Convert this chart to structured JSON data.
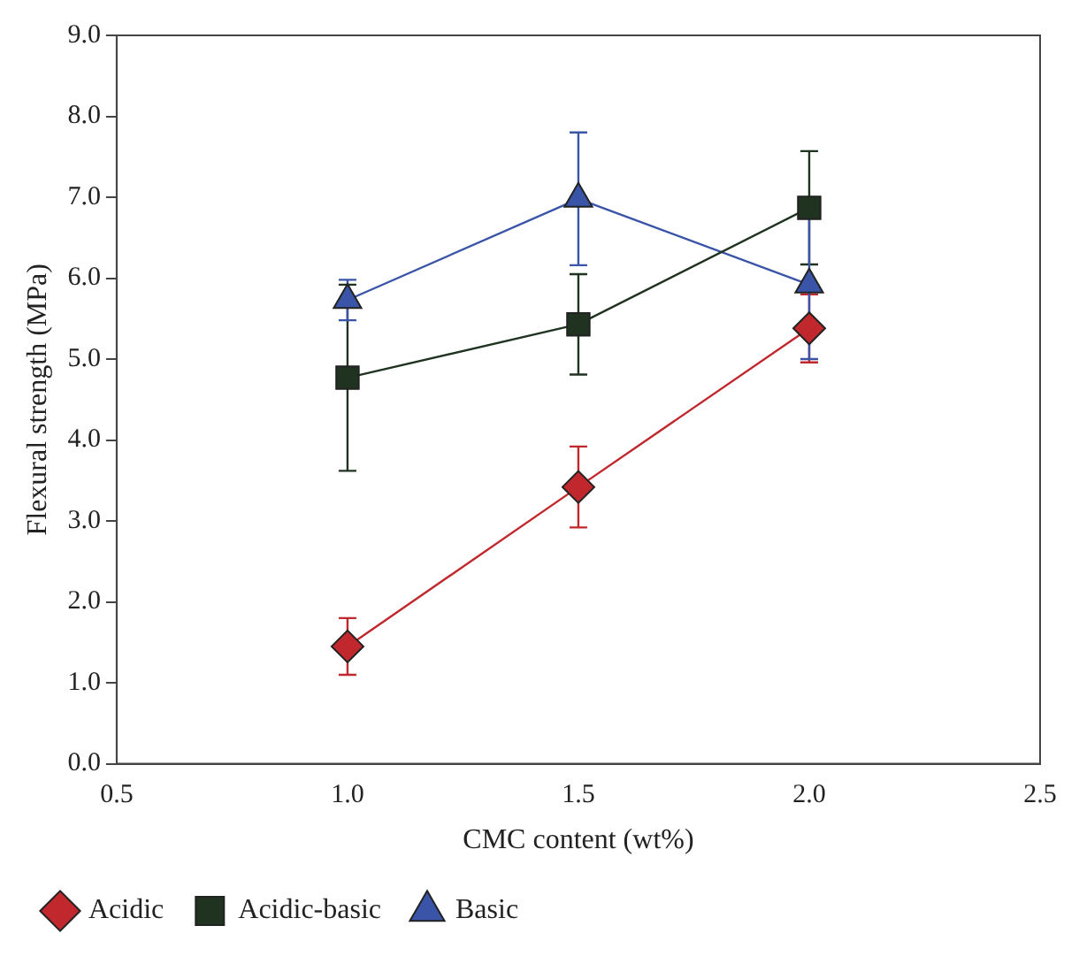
{
  "chart_data": {
    "type": "line",
    "xlabel": "CMC content (wt%)",
    "ylabel": "Flexural strength (MPa)",
    "x": [
      1.0,
      1.5,
      2.0
    ],
    "series": [
      {
        "name": "Acidic",
        "color": "#c0282d",
        "marker": "diamond",
        "values": [
          1.45,
          3.42,
          5.38
        ],
        "errors": [
          0.35,
          0.5,
          0.42
        ]
      },
      {
        "name": "Acidic-basic",
        "color": "#1f3320",
        "marker": "square",
        "values": [
          4.77,
          5.43,
          6.87
        ],
        "errors": [
          1.15,
          0.62,
          0.7
        ]
      },
      {
        "name": "Basic",
        "color": "#3a55a8",
        "marker": "triangle",
        "values": [
          5.73,
          6.98,
          5.92
        ],
        "errors": [
          0.25,
          0.82,
          0.92
        ]
      }
    ],
    "xlim": [
      0.5,
      2.5
    ],
    "xticks": [
      {
        "value": 0.5,
        "label": "0.5"
      },
      {
        "value": 1,
        "label": "1.0"
      },
      {
        "value": 1.5,
        "label": "1.5"
      },
      {
        "value": 2,
        "label": "2.0"
      },
      {
        "value": 2.5,
        "label": "2.5"
      }
    ],
    "ylim": [
      0,
      9
    ],
    "yticks": [
      {
        "value": 0,
        "label": "0.0"
      },
      {
        "value": 1,
        "label": "1.0"
      },
      {
        "value": 2,
        "label": "2.0"
      },
      {
        "value": 3,
        "label": "3.0"
      },
      {
        "value": 4,
        "label": "4.0"
      },
      {
        "value": 5,
        "label": "5.0"
      },
      {
        "value": 6,
        "label": "6.0"
      },
      {
        "value": 7,
        "label": "7.0"
      },
      {
        "value": 8,
        "label": "8.0"
      },
      {
        "value": 9,
        "label": "9.0"
      }
    ],
    "grid": false,
    "legend": "bottom left",
    "line_style": "solid"
  }
}
